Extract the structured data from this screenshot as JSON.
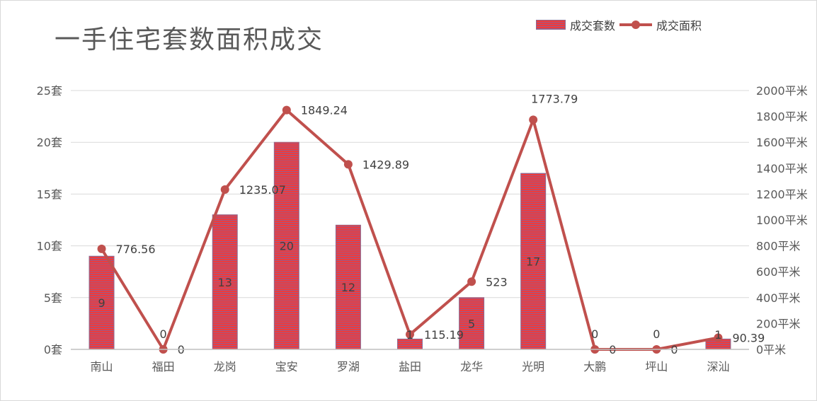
{
  "chart_data": {
    "type": "bar",
    "title": "一手住宅套数面积成交",
    "categories": [
      "南山",
      "福田",
      "龙岗",
      "宝安",
      "罗湖",
      "盐田",
      "龙华",
      "光明",
      "大鹏",
      "坪山",
      "深汕"
    ],
    "series": [
      {
        "name": "成交套数",
        "type": "bar",
        "axis": "left",
        "values": [
          9,
          0,
          13,
          20,
          12,
          1,
          5,
          17,
          0,
          0,
          1
        ],
        "labels": [
          "9",
          "0",
          "13",
          "20",
          "12",
          "1",
          "5",
          "17",
          "0",
          "0",
          "1"
        ],
        "color": "#ef3b3b"
      },
      {
        "name": "成交面积",
        "type": "line",
        "axis": "right",
        "values": [
          776.56,
          0,
          1235.07,
          1849.24,
          1429.89,
          115.19,
          523,
          1773.79,
          0,
          0,
          90.39
        ],
        "labels": [
          "776.56",
          "0",
          "1235.07",
          "1849.24",
          "1429.89",
          "115.19",
          "523",
          "1773.79",
          "0",
          "0",
          "90.39"
        ],
        "color": "#c0504d"
      }
    ],
    "y_left": {
      "min": 0,
      "max": 25,
      "step": 5,
      "ticks": [
        "0套",
        "5套",
        "10套",
        "15套",
        "20套",
        "25套"
      ]
    },
    "y_right": {
      "min": 0,
      "max": 2000,
      "step": 200,
      "ticks": [
        "0平米",
        "200平米",
        "400平米",
        "600平米",
        "800平米",
        "1000平米",
        "1200平米",
        "1400平米",
        "1600平米",
        "1800平米",
        "2000平米"
      ]
    },
    "grid": true,
    "legend_position": "top-right"
  },
  "colors": {
    "bar_primary": "#ef3b3b",
    "bar_stripe": "#9b5a8a",
    "line": "#c0504d",
    "grid": "#d9d9d9",
    "axis": "#bfbfbf",
    "tick_text": "#595959",
    "label_text": "#404040"
  }
}
